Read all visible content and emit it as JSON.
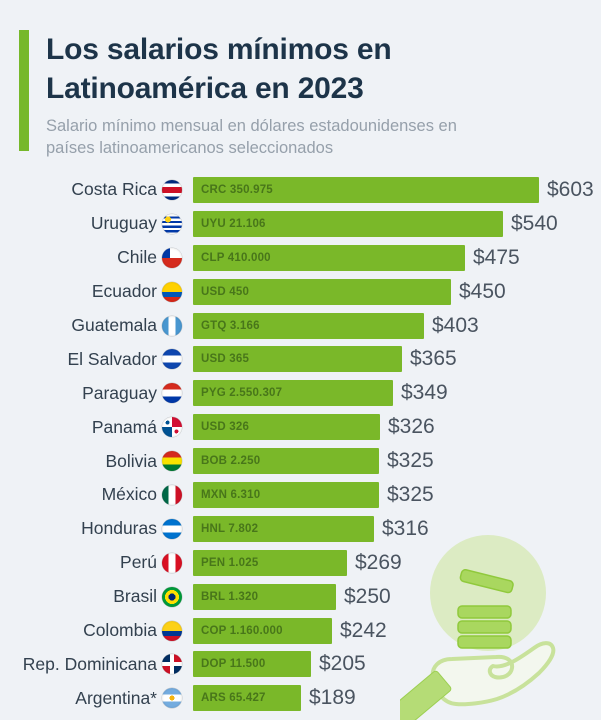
{
  "header": {
    "title_line1": "Los salarios mínimos en",
    "title_line2": "Latinoamérica en 2023",
    "subtitle": "Salario mínimo mensual en dólares estadounidenses en países latinoamericanos seleccionados",
    "accent_color": "#76b82a"
  },
  "chart_data": {
    "type": "bar",
    "orientation": "horizontal",
    "title": "Los salarios mínimos en Latinoamérica en 2023",
    "subtitle": "Salario mínimo mensual en dólares estadounidenses en países latinoamericanos seleccionados",
    "unit": "USD por mes",
    "xlim": [
      0,
      640
    ],
    "grid": false,
    "legend": "none",
    "bar_color": "#7ab829",
    "bar_label_color": "#48761a",
    "value_color": "#4a5460",
    "categories": [
      "Costa Rica",
      "Uruguay",
      "Chile",
      "Ecuador",
      "Guatemala",
      "El Salvador",
      "Paraguay",
      "Panamá",
      "Bolivia",
      "México",
      "Honduras",
      "Perú",
      "Brasil",
      "Colombia",
      "Rep. Dominicana",
      "Argentina*"
    ],
    "values": [
      603,
      540,
      475,
      450,
      403,
      365,
      349,
      326,
      325,
      325,
      316,
      269,
      250,
      242,
      205,
      189
    ],
    "rows": [
      {
        "country": "Costa Rica",
        "flag_icon": "costa-rica-flag-icon",
        "bar_label": "CRC 350.975",
        "value": 603,
        "value_label": "$603",
        "flag_css": "linear-gradient(180deg,#002b7f 0 18%,#ffffff 18% 36%,#ce1126 36% 64%,#ffffff 64% 82%,#002b7f 82%)"
      },
      {
        "country": "Uruguay",
        "flag_icon": "uruguay-flag-icon",
        "bar_label": "UYU 21.106",
        "value": 540,
        "value_label": "$540",
        "flag_css": "radial-gradient(circle at 30% 27%, #fcd116 0 3px, rgba(0,0,0,0) 3px), repeating-linear-gradient(180deg,#ffffff 0 2.3px,#0038a8 2.3px 4.6px)"
      },
      {
        "country": "Chile",
        "flag_icon": "chile-flag-icon",
        "bar_label": "CLP 410.000",
        "value": 475,
        "value_label": "$475",
        "flag_css": "linear-gradient(180deg, rgba(0,0,0,0) 0 50%, #d52b1e 50%), linear-gradient(90deg,#0039a6 0 40%,#ffffff 40%)"
      },
      {
        "country": "Ecuador",
        "flag_icon": "ecuador-flag-icon",
        "bar_label": "USD 450",
        "value": 450,
        "value_label": "$450",
        "flag_css": "linear-gradient(180deg,#ffd100 0 50%,#0057b8 50% 75%,#d62718 75%)"
      },
      {
        "country": "Guatemala",
        "flag_icon": "guatemala-flag-icon",
        "bar_label": "GTQ 3.166",
        "value": 403,
        "value_label": "$403",
        "flag_css": "linear-gradient(90deg,#4997d0 0 33%,#ffffff 33% 67%,#4997d0 67%)"
      },
      {
        "country": "El Salvador",
        "flag_icon": "el-salvador-flag-icon",
        "bar_label": "USD 365",
        "value": 365,
        "value_label": "$365",
        "flag_css": "linear-gradient(180deg,#0f47af 0 32%,#ffffff 32% 68%,#0f47af 68%)"
      },
      {
        "country": "Paraguay",
        "flag_icon": "paraguay-flag-icon",
        "bar_label": "PYG 2.550.307",
        "value": 349,
        "value_label": "$349",
        "flag_css": "linear-gradient(180deg,#d52b1e 0 33%,#ffffff 33% 67%,#0038a8 67%)"
      },
      {
        "country": "Panamá",
        "flag_icon": "panama-flag-icon",
        "bar_label": "USD 326",
        "value": 326,
        "value_label": "$326",
        "flag_css": "radial-gradient(circle at 28% 28%, #005293 0 2px, rgba(0,0,0,0) 2px), radial-gradient(circle at 72% 72%, #d21034 0 2px, rgba(0,0,0,0) 2px), conic-gradient(from 0deg,#d21034 0 25%,#ffffff 0 50%,#005293 0 75%,#ffffff 0)"
      },
      {
        "country": "Bolivia",
        "flag_icon": "bolivia-flag-icon",
        "bar_label": "BOB 2.250",
        "value": 325,
        "value_label": "$325",
        "flag_css": "linear-gradient(180deg,#d52b1e 0 33%,#f9e300 33% 67%,#007934 67%)"
      },
      {
        "country": "México",
        "flag_icon": "mexico-flag-icon",
        "bar_label": "MXN 6.310",
        "value": 325,
        "value_label": "$325",
        "flag_css": "linear-gradient(90deg,#006847 0 33%,#ffffff 33% 67%,#ce1126 67%)"
      },
      {
        "country": "Honduras",
        "flag_icon": "honduras-flag-icon",
        "bar_label": "HNL 7.802",
        "value": 316,
        "value_label": "$316",
        "flag_css": "linear-gradient(180deg,#0073cf 0 32%,#ffffff 32% 68%,#0073cf 68%)"
      },
      {
        "country": "Perú",
        "flag_icon": "peru-flag-icon",
        "bar_label": "PEN 1.025",
        "value": 269,
        "value_label": "$269",
        "flag_css": "linear-gradient(90deg,#d91023 0 33%,#ffffff 33% 67%,#d91023 67%)"
      },
      {
        "country": "Brasil",
        "flag_icon": "brasil-flag-icon",
        "bar_label": "BRL 1.320",
        "value": 250,
        "value_label": "$250",
        "flag_css": "radial-gradient(circle at 50% 50%, #002776 0 3.5px, #ffdf00 3.5px 7px, #009b3a 7px)"
      },
      {
        "country": "Colombia",
        "flag_icon": "colombia-flag-icon",
        "bar_label": "COP 1.160.000",
        "value": 242,
        "value_label": "$242",
        "flag_css": "linear-gradient(180deg,#fcd116 0 50%,#003893 50% 75%,#ce1126 75%)"
      },
      {
        "country": "Rep. Dominicana",
        "flag_icon": "rep-dominicana-flag-icon",
        "bar_label": "DOP 11.500",
        "value": 205,
        "value_label": "$205",
        "flag_css": "linear-gradient(90deg, rgba(0,0,0,0) 0 41%, #ffffff 41% 59%, rgba(0,0,0,0) 59%), linear-gradient(180deg, rgba(0,0,0,0) 0 41%, #ffffff 41% 59%, rgba(0,0,0,0) 59%), conic-gradient(from 0deg,#ce1126 0 25%,#002d62 0 50%,#ce1126 0 75%,#002d62 0)"
      },
      {
        "country": "Argentina*",
        "flag_icon": "argentina-flag-icon",
        "bar_label": "ARS 65.427",
        "value": 189,
        "value_label": "$189",
        "flag_css": "radial-gradient(circle at 50% 50%, #f6b40e 0 2.5px, rgba(0,0,0,0) 2.5px), linear-gradient(180deg,#74acdf 0 33%,#ffffff 33% 67%,#74acdf 67%)"
      }
    ]
  },
  "decoration": {
    "name": "hand-with-coins-illustration",
    "circle_color": "#dcebc3",
    "coin_fill": "#a9d75f",
    "coin_stroke": "#90c93c",
    "hand_stroke": "#c8e29b",
    "hand_fill": "#f3f7ee",
    "sleeve_fill": "#b5dc76"
  }
}
